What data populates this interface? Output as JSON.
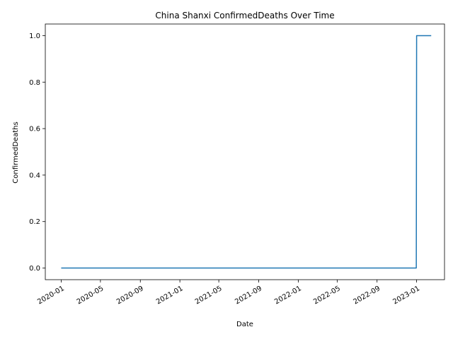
{
  "chart_data": {
    "type": "line",
    "title": "China Shanxi ConfirmedDeaths Over Time",
    "xlabel": "Date",
    "ylabel": "ConfirmedDeaths",
    "x_ticks": [
      "2020-01",
      "2020-05",
      "2020-09",
      "2021-01",
      "2021-05",
      "2021-09",
      "2022-01",
      "2022-05",
      "2022-09",
      "2023-01"
    ],
    "y_ticks": [
      "0.0",
      "0.2",
      "0.4",
      "0.6",
      "0.8",
      "1.0"
    ],
    "ylim": [
      -0.05,
      1.05
    ],
    "xlim": [
      "2019-11-13",
      "2023-03-28"
    ],
    "grid": false,
    "series": [
      {
        "color": "#1f77b4",
        "points": [
          {
            "x": "2020-01-01",
            "y": 0
          },
          {
            "x": "2022-12-31",
            "y": 0
          },
          {
            "x": "2023-01-01",
            "y": 1
          },
          {
            "x": "2023-02-15",
            "y": 1
          }
        ]
      }
    ]
  }
}
